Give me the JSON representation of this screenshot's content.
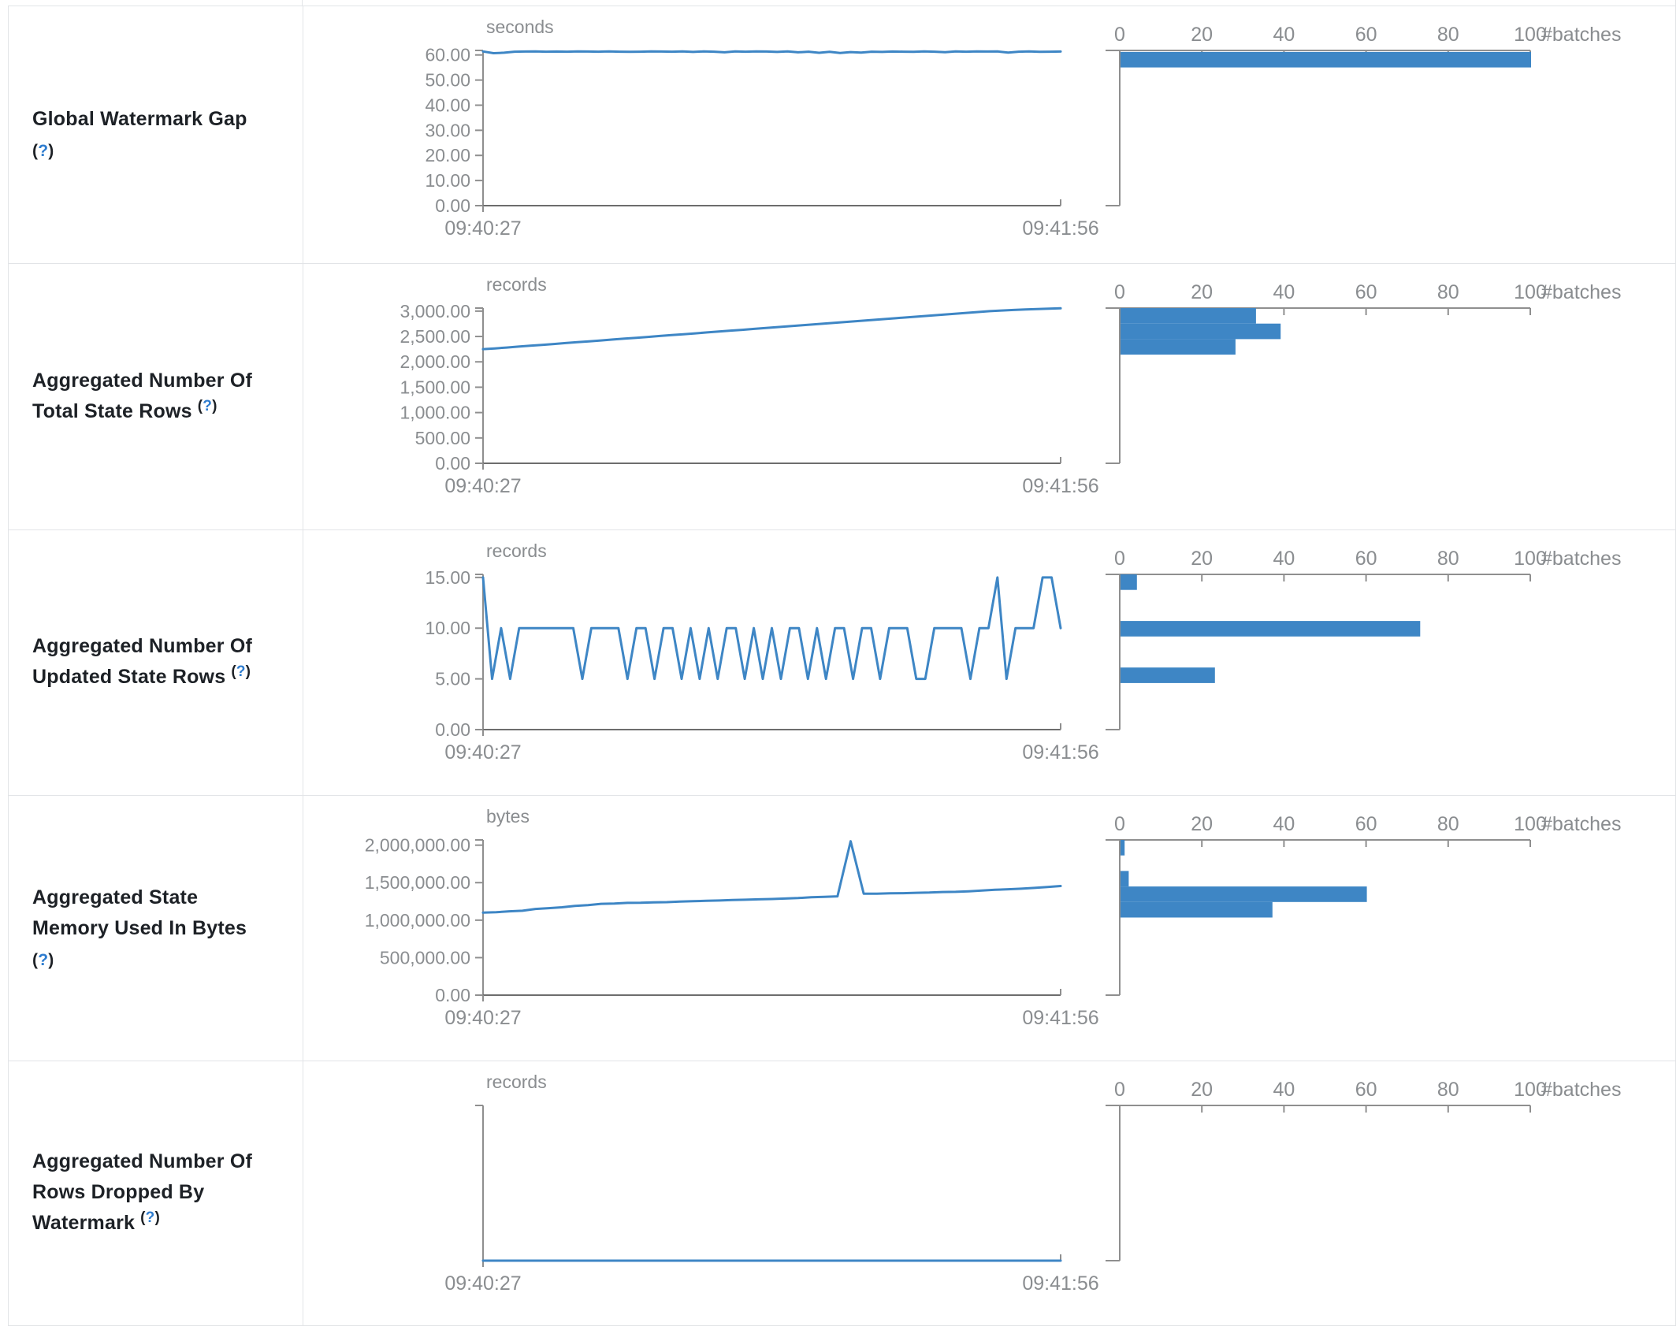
{
  "page": {
    "background": "#ffffff",
    "border_color": "#e2e4e7"
  },
  "colors": {
    "accent_blue": "#3e86c5",
    "axis_gray": "#8f8f8f",
    "baseline_gray": "#6d6d6d",
    "label_gray": "#8a8d90",
    "title_dark": "#1d2126",
    "help_blue": "#2e7ccf"
  },
  "chart_data": [
    {
      "id": "global-watermark-gap",
      "title_lines": [
        "Global Watermark Gap",
        "(?)"
      ],
      "help_label": "(?)",
      "type": "line",
      "unit": "seconds",
      "x_start": "09:40:27",
      "x_end": "09:41:56",
      "y_domain_max": 61.8,
      "y_ticks": [
        {
          "v": 0,
          "label": "0.00"
        },
        {
          "v": 10,
          "label": "10.00"
        },
        {
          "v": 20,
          "label": "20.00"
        },
        {
          "v": 30,
          "label": "30.00"
        },
        {
          "v": 40,
          "label": "40.00"
        },
        {
          "v": 50,
          "label": "50.00"
        },
        {
          "v": 60,
          "label": "60.00"
        }
      ],
      "timeline_values": [
        61.4,
        60.7,
        60.9,
        61.3,
        61.35,
        61.4,
        61.3,
        61.35,
        61.3,
        61.4,
        61.35,
        61.3,
        61.4,
        61.3,
        61.25,
        61.3,
        61.4,
        61.35,
        61.3,
        61.4,
        61.2,
        61.4,
        61.3,
        61.05,
        61.4,
        61.3,
        61.4,
        61.35,
        61.2,
        61.4,
        61.05,
        61.3,
        60.85,
        61.25,
        60.8,
        61.15,
        60.95,
        61.3,
        61.2,
        61.35,
        61.3,
        61.25,
        61.4,
        61.3,
        61.1,
        61.4,
        61.3,
        61.4,
        61.35,
        61.4,
        60.95,
        61.3,
        61.4,
        61.25,
        61.3,
        61.35
      ],
      "histogram": {
        "type": "bar",
        "x_ticks": [
          0,
          20,
          40,
          60,
          80,
          100
        ],
        "x_label": "#batches",
        "x_max": 100,
        "bars": [
          {
            "bin_top": 61.2,
            "count": 100
          }
        ]
      }
    },
    {
      "id": "aggregated-total-state-rows",
      "title_lines": [
        "Aggregated Number Of",
        "Total State Rows (?)"
      ],
      "help_label": "(?)",
      "type": "line",
      "unit": "records",
      "x_start": "09:40:27",
      "x_end": "09:41:56",
      "y_domain_max": 3060,
      "y_ticks": [
        {
          "v": 0,
          "label": "0.00"
        },
        {
          "v": 500,
          "label": "500.00"
        },
        {
          "v": 1000,
          "label": "1,000.00"
        },
        {
          "v": 1500,
          "label": "1,500.00"
        },
        {
          "v": 2000,
          "label": "2,000.00"
        },
        {
          "v": 2500,
          "label": "2,500.00"
        },
        {
          "v": 3000,
          "label": "3,000.00"
        }
      ],
      "timeline_values": [
        2250,
        2265,
        2282,
        2300,
        2318,
        2335,
        2352,
        2370,
        2388,
        2405,
        2422,
        2440,
        2458,
        2475,
        2492,
        2510,
        2528,
        2545,
        2562,
        2580,
        2598,
        2615,
        2632,
        2650,
        2668,
        2685,
        2702,
        2720,
        2738,
        2755,
        2772,
        2790,
        2808,
        2825,
        2842,
        2860,
        2878,
        2895,
        2912,
        2930,
        2948,
        2965,
        2982,
        3000,
        3012,
        3022,
        3032,
        3040,
        3048,
        3055
      ],
      "histogram": {
        "type": "bar",
        "x_ticks": [
          0,
          20,
          40,
          60,
          80,
          100
        ],
        "x_label": "#batches",
        "x_max": 100,
        "bars": [
          {
            "bin_top": 3060,
            "count": 33
          },
          {
            "bin_top": 2754,
            "count": 39
          },
          {
            "bin_top": 2448,
            "count": 28
          }
        ]
      }
    },
    {
      "id": "aggregated-updated-state-rows",
      "title_lines": [
        "Aggregated Number Of",
        "Updated State Rows (?)"
      ],
      "help_label": "(?)",
      "type": "line",
      "unit": "records",
      "x_start": "09:40:27",
      "x_end": "09:41:56",
      "y_domain_max": 15.3,
      "y_ticks": [
        {
          "v": 0,
          "label": "0.00"
        },
        {
          "v": 5,
          "label": "5.00"
        },
        {
          "v": 10,
          "label": "10.00"
        },
        {
          "v": 15,
          "label": "15.00"
        }
      ],
      "timeline_values": [
        15,
        5,
        10,
        5,
        10,
        10,
        10,
        10,
        10,
        10,
        10,
        5,
        10,
        10,
        10,
        10,
        5,
        10,
        10,
        5,
        10,
        10,
        5,
        10,
        5,
        10,
        5,
        10,
        10,
        5,
        10,
        5,
        10,
        5,
        10,
        10,
        5,
        10,
        5,
        10,
        10,
        5,
        10,
        10,
        5,
        10,
        10,
        10,
        5,
        5,
        10,
        10,
        10,
        10,
        5,
        10,
        10,
        15,
        5,
        10,
        10,
        10,
        15,
        15,
        10
      ],
      "histogram": {
        "type": "bar",
        "x_ticks": [
          0,
          20,
          40,
          60,
          80,
          100
        ],
        "x_label": "#batches",
        "x_max": 100,
        "bars": [
          {
            "bin_top": 15.3,
            "count": 4
          },
          {
            "bin_top": 10.71,
            "count": 73
          },
          {
            "bin_top": 6.12,
            "count": 23
          }
        ]
      }
    },
    {
      "id": "aggregated-state-memory-used",
      "title_lines": [
        "Aggregated State",
        "Memory Used In Bytes",
        "(?)"
      ],
      "help_label": "(?)",
      "type": "line",
      "unit": "bytes",
      "x_start": "09:40:27",
      "x_end": "09:41:56",
      "y_domain_max": 2070000,
      "y_ticks": [
        {
          "v": 0,
          "label": "0.00"
        },
        {
          "v": 500000,
          "label": "500,000.00"
        },
        {
          "v": 1000000,
          "label": "1,000,000.00"
        },
        {
          "v": 1500000,
          "label": "1,500,000.00"
        },
        {
          "v": 2000000,
          "label": "2,000,000.00"
        }
      ],
      "timeline_values": [
        1100000,
        1105000,
        1118000,
        1125000,
        1150000,
        1160000,
        1172000,
        1190000,
        1200000,
        1218000,
        1222000,
        1230000,
        1232000,
        1238000,
        1240000,
        1248000,
        1252000,
        1258000,
        1262000,
        1268000,
        1272000,
        1278000,
        1282000,
        1288000,
        1295000,
        1305000,
        1310000,
        1318000,
        2052000,
        1352000,
        1352000,
        1358000,
        1360000,
        1365000,
        1368000,
        1375000,
        1378000,
        1385000,
        1395000,
        1405000,
        1412000,
        1420000,
        1430000,
        1442000,
        1455000
      ],
      "histogram": {
        "type": "bar",
        "x_ticks": [
          0,
          20,
          40,
          60,
          80,
          100
        ],
        "x_label": "#batches",
        "x_max": 100,
        "bars": [
          {
            "bin_top": 2070000,
            "count": 1
          },
          {
            "bin_top": 1656000,
            "count": 2
          },
          {
            "bin_top": 1449000,
            "count": 60
          },
          {
            "bin_top": 1242000,
            "count": 37
          }
        ]
      }
    },
    {
      "id": "aggregated-rows-dropped-by-watermark",
      "title_lines": [
        "Aggregated Number Of",
        "Rows Dropped By",
        "Watermark (?)"
      ],
      "help_label": "(?)",
      "type": "line",
      "unit": "records",
      "x_start": "09:40:27",
      "x_end": "09:41:56",
      "y_domain_max": 1,
      "y_ticks": [],
      "timeline_values": [
        0,
        0,
        0,
        0,
        0,
        0,
        0,
        0,
        0,
        0
      ],
      "histogram": {
        "type": "bar",
        "x_ticks": [
          0,
          20,
          40,
          60,
          80,
          100
        ],
        "x_label": "#batches",
        "x_max": 100,
        "bars": []
      }
    }
  ]
}
